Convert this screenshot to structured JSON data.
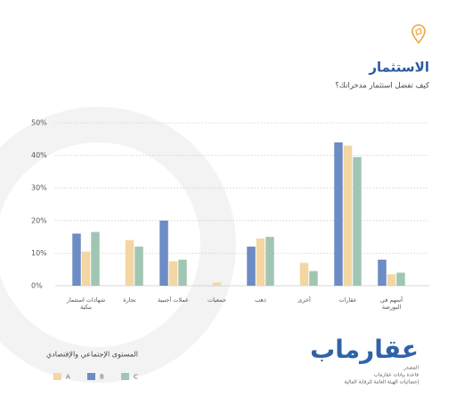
{
  "chart_data": {
    "type": "bar",
    "title": "الاستثمار",
    "subtitle": "كيف تفضل استثمار مدخراتك؟",
    "categories": [
      "شهادات استثمار بنكية",
      "تجارة",
      "عملات أجنبية",
      "جمعيات",
      "ذهب",
      "أخرى",
      "عقارات",
      "أسهم في البورصة"
    ],
    "series": [
      {
        "name": "B",
        "color": "#6d8bc4",
        "values": [
          16,
          null,
          20,
          null,
          12,
          null,
          44,
          8
        ]
      },
      {
        "name": "A",
        "color": "#f3d6a2",
        "values": [
          10.5,
          14,
          7.5,
          1,
          14.5,
          7,
          43,
          3.5
        ]
      },
      {
        "name": "C",
        "color": "#a0c6b3",
        "values": [
          16.5,
          12,
          8,
          null,
          15,
          4.5,
          39.5,
          4
        ]
      }
    ],
    "legend_order": [
      "A",
      "B",
      "C"
    ],
    "legend_title": "المستوى الإجتماعي والإقتصادي",
    "ylim": [
      0,
      50
    ],
    "yticks": [
      {
        "value": 0,
        "label": "0%"
      },
      {
        "value": 10,
        "label": "10%"
      },
      {
        "value": 20,
        "label": "20%"
      },
      {
        "value": 30,
        "label": "30%"
      },
      {
        "value": 40,
        "label": "40%"
      },
      {
        "value": 50,
        "label": "50%"
      }
    ],
    "grid": true,
    "brand": "عقارماب",
    "source": [
      "المصدر",
      "قاعدة بيانات عقارماب",
      "إحصائيات الهيئة العامة للرقابة المالية"
    ]
  }
}
